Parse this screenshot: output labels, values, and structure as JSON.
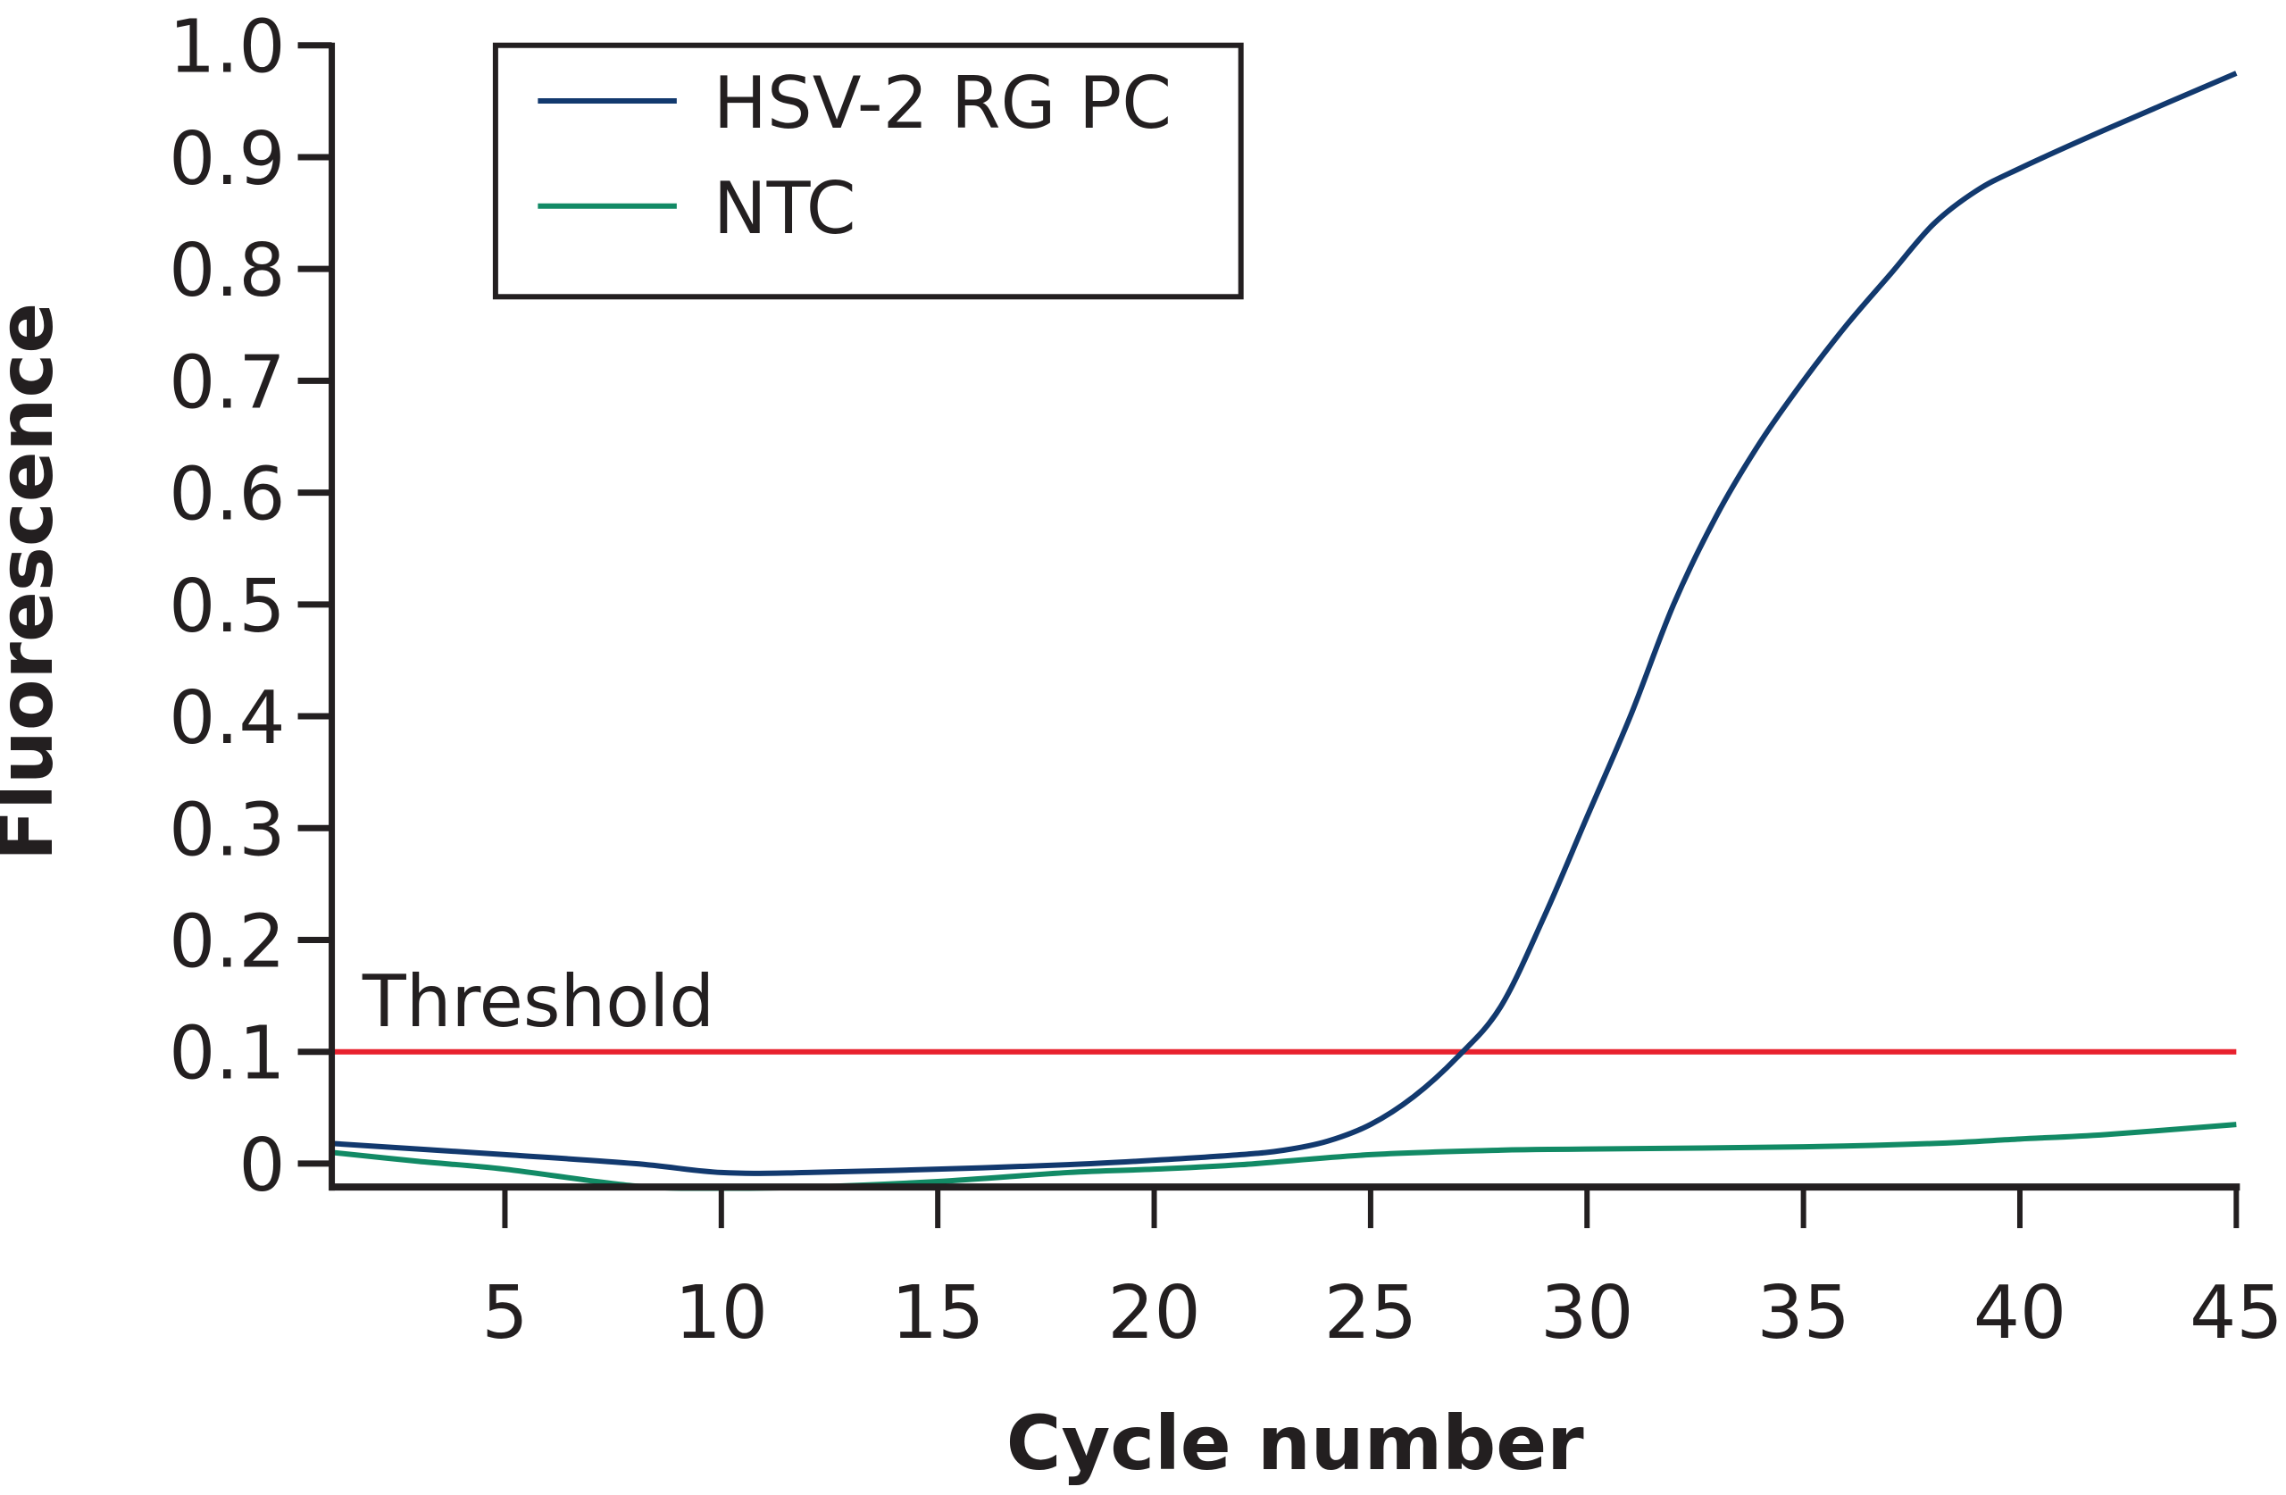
{
  "chart_data": {
    "type": "line",
    "title": "",
    "xlabel": "Cycle number",
    "ylabel": "Fluorescence",
    "xlim": [
      1,
      45
    ],
    "ylim": [
      -0.03,
      1.0
    ],
    "grid": false,
    "x_ticks": [
      5,
      10,
      15,
      20,
      25,
      30,
      35,
      40,
      45
    ],
    "x_tick_labels": [
      "5",
      "10",
      "15",
      "20",
      "25",
      "30",
      "35",
      "40",
      "45"
    ],
    "y_ticks": [
      0,
      0.1,
      0.2,
      0.3,
      0.4,
      0.5,
      0.6,
      0.7,
      0.8,
      0.9,
      1.0
    ],
    "y_tick_labels": [
      "0",
      "0.1",
      "0.2",
      "0.3",
      "0.4",
      "0.5",
      "0.6",
      "0.7",
      "0.8",
      "0.9",
      "1.0"
    ],
    "legend_position": "top-left",
    "series": [
      {
        "name": "HSV-2 RG PC",
        "color": "#12396e",
        "x": [
          1,
          5,
          8,
          10,
          12,
          15,
          18,
          20,
          22,
          23,
          24,
          25,
          26,
          27,
          28,
          29,
          30,
          31,
          32,
          33,
          34,
          35,
          36,
          37,
          38,
          39,
          40,
          42,
          45
        ],
        "y": [
          0.018,
          0.008,
          0.0,
          -0.008,
          -0.008,
          -0.005,
          -0.001,
          0.003,
          0.008,
          0.012,
          0.02,
          0.035,
          0.06,
          0.095,
          0.14,
          0.22,
          0.31,
          0.4,
          0.5,
          0.58,
          0.645,
          0.7,
          0.75,
          0.795,
          0.84,
          0.87,
          0.89,
          0.925,
          0.975
        ]
      },
      {
        "name": "NTC",
        "color": "#128a65",
        "x": [
          1,
          3,
          5,
          8,
          10,
          12,
          15,
          18,
          20,
          22,
          25,
          28,
          30,
          35,
          38,
          40,
          42,
          45
        ],
        "y": [
          0.01,
          0.002,
          -0.005,
          -0.02,
          -0.022,
          -0.021,
          -0.016,
          -0.008,
          -0.005,
          -0.001,
          0.008,
          0.012,
          0.013,
          0.015,
          0.018,
          0.022,
          0.026,
          0.035
        ]
      }
    ],
    "reference_lines": [
      {
        "name": "Threshold",
        "axis": "y",
        "value": 0.1,
        "color": "#e8212e",
        "label": "Threshold"
      }
    ]
  }
}
